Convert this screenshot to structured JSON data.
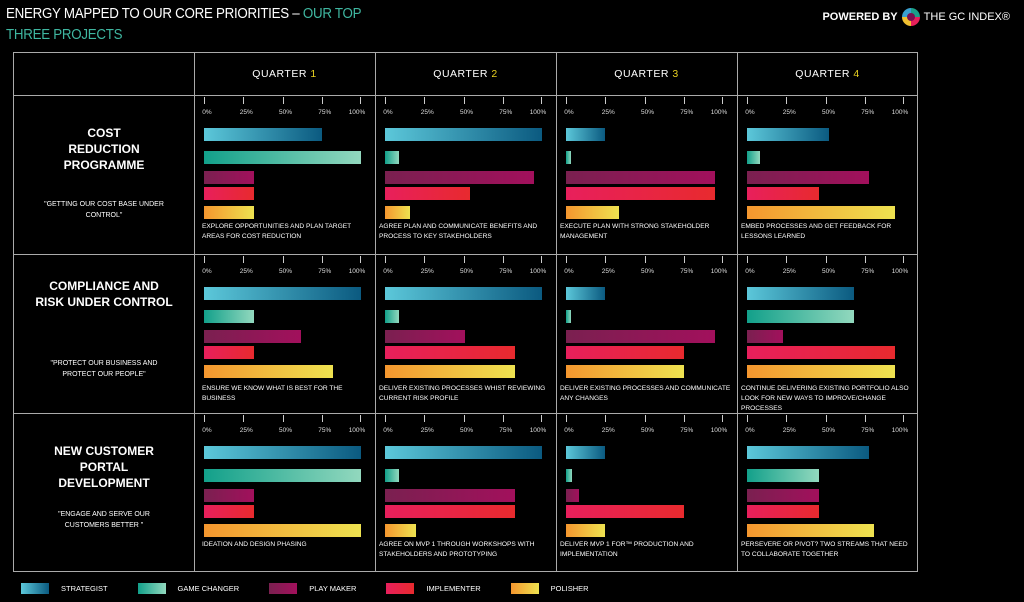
{
  "header": {
    "title_white": "ENERGY MAPPED TO OUR CORE PRIORITIES – ",
    "title_accent_1": "OUR TOP",
    "title_accent_2": "THREE PROJECTS",
    "powered_by": "POWERED BY",
    "brand": "THE GC INDEX®"
  },
  "colors": {
    "accent": "#3fb6a0",
    "quarter_number": "#e8d020"
  },
  "chart_data": {
    "type": "bar",
    "orientation": "horizontal",
    "xlim": [
      0,
      100
    ],
    "tick_labels": [
      "0%",
      "25%",
      "50%",
      "75%",
      "100%"
    ],
    "quarters": [
      {
        "label": "QUARTER ",
        "num": "1"
      },
      {
        "label": "QUARTER ",
        "num": "2"
      },
      {
        "label": "QUARTER ",
        "num": "3"
      },
      {
        "label": "QUARTER ",
        "num": "4"
      }
    ],
    "series": [
      {
        "name": "STRATEGIST",
        "gradient": [
          "#5cc8da",
          "#0b5a80"
        ]
      },
      {
        "name": "GAME CHANGER",
        "gradient": [
          "#12a08a",
          "#92d8be"
        ]
      },
      {
        "name": "PLAY MAKER",
        "gradient": [
          "#7a2050",
          "#a2105c"
        ]
      },
      {
        "name": "IMPLEMENTER",
        "gradient": [
          "#e81f5c",
          "#e82a2e"
        ]
      },
      {
        "name": "POLISHER",
        "gradient": [
          "#f4962e",
          "#eee250"
        ]
      }
    ],
    "projects": [
      {
        "name": "COST REDUCTION PROGRAMME",
        "quote": "\"GETTING OUR COST BASE UNDER CONTROL\"",
        "quarters": [
          {
            "values": [
              75,
              100,
              32,
              32,
              32
            ],
            "description": "EXPLORE OPPORTUNITIES AND PLAN TARGET AREAS FOR COST REDUCTION"
          },
          {
            "values": [
              100,
              9,
              95,
              54,
              16
            ],
            "description": "AGREE PLAN AND COMMUNICATE BENEFITS AND PROCESS TO KEY STAKEHOLDERS"
          },
          {
            "values": [
              25,
              3,
              95,
              95,
              34
            ],
            "description": "EXECUTE PLAN WITH STRONG STAKEHOLDER MANAGEMENT"
          },
          {
            "values": [
              52,
              8,
              78,
              46,
              94
            ],
            "description": "EMBED PROCESSES AND GET FEEDBACK FOR LESSONS LEARNED"
          }
        ]
      },
      {
        "name": "COMPLIANCE AND RISK UNDER CONTROL",
        "quote": "\"PROTECT OUR BUSINESS AND PROTECT OUR PEOPLE\"",
        "quarters": [
          {
            "values": [
              100,
              32,
              62,
              32,
              82
            ],
            "description": "ENSURE WE KNOW WHAT IS BEST FOR THE BUSINESS"
          },
          {
            "values": [
              100,
              9,
              51,
              83,
              83
            ],
            "description": "DELIVER EXISTING PROCESSES WHIST REVIEWING CURRENT RISK PROFILE"
          },
          {
            "values": [
              25,
              3,
              95,
              75,
              75
            ],
            "description": "DELIVER EXISTING PROCESSES AND COMMUNICATE ANY CHANGES"
          },
          {
            "values": [
              68,
              68,
              23,
              94,
              94
            ],
            "description": "CONTINUE DELIVERING EXISTING PORTFOLIO ALSO LOOK FOR NEW WAYS TO IMPROVE/CHANGE PROCESSES"
          }
        ]
      },
      {
        "name": "NEW CUSTOMER PORTAL DEVELOPMENT",
        "quote": "\"ENGAGE AND SERVE OUR CUSTOMERS BETTER \"",
        "quarters": [
          {
            "values": [
              100,
              100,
              32,
              32,
              100
            ],
            "description": "IDEATION AND DESIGN PHASING"
          },
          {
            "values": [
              100,
              9,
              83,
              83,
              20
            ],
            "description": "AGREE ON MVP 1 THROUGH WORKSHOPS WITH STAKEHOLDERS AND PROTOTYPING"
          },
          {
            "values": [
              25,
              4,
              8,
              75,
              25
            ],
            "description": "DELIVER MVP 1 FOR™ PRODUCTION AND IMPLEMENTATION"
          },
          {
            "values": [
              78,
              46,
              46,
              46,
              81
            ],
            "description": "PERSEVERE OR PIVOT? TWO STREAMS THAT NEED TO COLLABORATE TOGETHER"
          }
        ]
      }
    ],
    "legend": "bottom"
  }
}
